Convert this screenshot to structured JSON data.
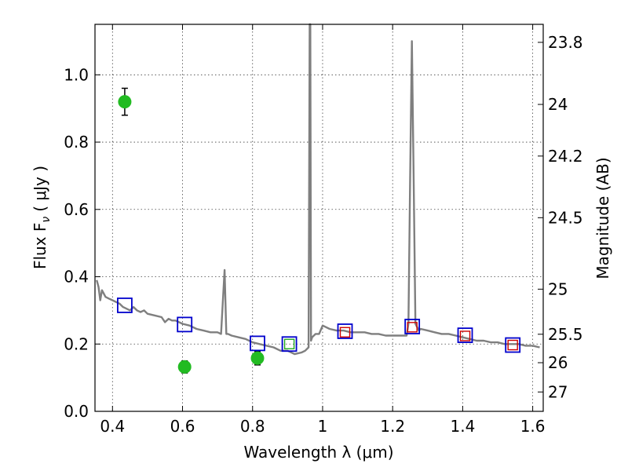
{
  "chart_data": {
    "type": "scatter",
    "xlabel": "Wavelength  λ (μm)",
    "ylabel_left": "Flux  F",
    "ylabel_left_sub": "ν",
    "ylabel_left_unit": "( μJy )",
    "ylabel_right": "Magnitude (AB)",
    "xlim": [
      0.35,
      1.63
    ],
    "ylim": [
      0.0,
      1.15
    ],
    "grid": true,
    "x_ticks": [
      0.4,
      0.6,
      0.8,
      1.0,
      1.2,
      1.4,
      1.6
    ],
    "x_tick_labels": [
      "0.4",
      "0.6",
      "0.8",
      "1",
      "1.2",
      "1.4",
      "1.6"
    ],
    "y_ticks": [
      0.0,
      0.2,
      0.4,
      0.6,
      0.8,
      1.0
    ],
    "y_tick_labels": [
      "0.0",
      "0.2",
      "0.4",
      "0.6",
      "0.8",
      "1.0"
    ],
    "right_ticks_mag": [
      23.8,
      24,
      24.2,
      24.5,
      25,
      25.5,
      26,
      27
    ],
    "right_tick_labels": [
      "23.8",
      "24",
      "24.2",
      "24.5",
      "25",
      "25.5",
      "26",
      "27"
    ],
    "colors": {
      "model": "#7f7f7f",
      "observed": "#22bb22",
      "model_phot": "#0000cc",
      "hst_phot": "#cc0000",
      "z_phot": "#22aa22"
    },
    "series": [
      {
        "kind": "line",
        "x": [
          0.355,
          0.36,
          0.365,
          0.37,
          0.375,
          0.38,
          0.39,
          0.4,
          0.41,
          0.42,
          0.43,
          0.44,
          0.45,
          0.46,
          0.47,
          0.48,
          0.49,
          0.5,
          0.52,
          0.54,
          0.55,
          0.56,
          0.57,
          0.58,
          0.6,
          0.62,
          0.64,
          0.66,
          0.68,
          0.7,
          0.71,
          0.72,
          0.725,
          0.73,
          0.74,
          0.76,
          0.78,
          0.8,
          0.82,
          0.84,
          0.86,
          0.88,
          0.9,
          0.92,
          0.94,
          0.95,
          0.96,
          0.963,
          0.965,
          0.967,
          0.97,
          0.98,
          0.99,
          1.0,
          1.02,
          1.04,
          1.06,
          1.08,
          1.1,
          1.12,
          1.14,
          1.16,
          1.18,
          1.2,
          1.22,
          1.24,
          1.245,
          1.25,
          1.255,
          1.26,
          1.265,
          1.27,
          1.275,
          1.28,
          1.3,
          1.32,
          1.34,
          1.36,
          1.38,
          1.4,
          1.42,
          1.44,
          1.46,
          1.48,
          1.5,
          1.52,
          1.54,
          1.56,
          1.58,
          1.6,
          1.62
        ],
        "y": [
          0.39,
          0.37,
          0.33,
          0.36,
          0.35,
          0.34,
          0.335,
          0.33,
          0.325,
          0.32,
          0.31,
          0.305,
          0.3,
          0.31,
          0.3,
          0.295,
          0.3,
          0.29,
          0.285,
          0.28,
          0.265,
          0.275,
          0.27,
          0.27,
          0.26,
          0.255,
          0.245,
          0.24,
          0.235,
          0.235,
          0.23,
          0.42,
          0.23,
          0.23,
          0.225,
          0.22,
          0.215,
          0.205,
          0.2,
          0.195,
          0.19,
          0.18,
          0.18,
          0.17,
          0.175,
          0.18,
          0.19,
          1.15,
          1.15,
          0.21,
          0.22,
          0.23,
          0.23,
          0.255,
          0.245,
          0.24,
          0.24,
          0.235,
          0.235,
          0.235,
          0.23,
          0.23,
          0.225,
          0.225,
          0.225,
          0.225,
          0.26,
          0.7,
          1.1,
          0.7,
          0.26,
          0.25,
          0.24,
          0.245,
          0.24,
          0.235,
          0.23,
          0.23,
          0.225,
          0.22,
          0.215,
          0.21,
          0.21,
          0.205,
          0.205,
          0.2,
          0.2,
          0.2,
          0.195,
          0.195,
          0.19
        ]
      },
      {
        "kind": "observed_points",
        "points": [
          {
            "x": 0.435,
            "y": 0.92,
            "err": 0.04
          },
          {
            "x": 0.606,
            "y": 0.132,
            "err": 0.018
          },
          {
            "x": 0.814,
            "y": 0.158,
            "err": 0.02
          }
        ]
      },
      {
        "kind": "model_phot_squares",
        "points": [
          {
            "x": 0.435,
            "y": 0.315
          },
          {
            "x": 0.606,
            "y": 0.258
          },
          {
            "x": 0.814,
            "y": 0.202
          },
          {
            "x": 0.905,
            "y": 0.2
          },
          {
            "x": 1.064,
            "y": 0.238
          },
          {
            "x": 1.256,
            "y": 0.252
          },
          {
            "x": 1.407,
            "y": 0.226
          },
          {
            "x": 1.543,
            "y": 0.197
          }
        ]
      },
      {
        "kind": "hst_phot_squares",
        "points": [
          {
            "x": 1.064,
            "y": 0.235
          },
          {
            "x": 1.256,
            "y": 0.25
          },
          {
            "x": 1.407,
            "y": 0.224
          },
          {
            "x": 1.543,
            "y": 0.197
          }
        ]
      },
      {
        "kind": "z_phot_square",
        "points": [
          {
            "x": 0.905,
            "y": 0.2
          }
        ]
      }
    ]
  }
}
